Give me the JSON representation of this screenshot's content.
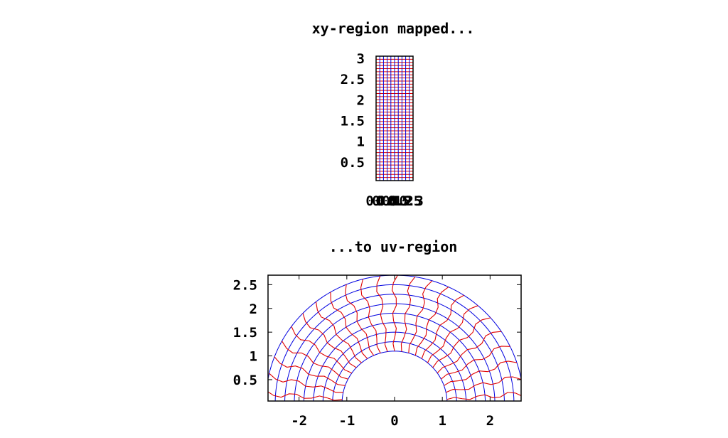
{
  "chart_data": [
    {
      "type": "line",
      "title": "xy-region mapped...",
      "xlabel": "",
      "ylabel": "",
      "xlim": [
        0,
        0.31416
      ],
      "ylim": [
        0.05,
        3.05
      ],
      "yticks": [
        "3",
        "2.5",
        "2",
        "1.5",
        "1",
        "0.5"
      ],
      "yticks_values": [
        3,
        2.5,
        2,
        1.5,
        1,
        0.5
      ],
      "xtick_labels": [
        "0",
        "0.05",
        "0.1",
        "0.15",
        "0.2",
        "0.25",
        "0.3"
      ],
      "xticks_values": [
        0,
        0.05,
        0.1,
        0.15,
        0.2,
        0.25,
        0.3
      ],
      "grid": {
        "x_lines": 10,
        "y_lines": 40
      },
      "series": [
        {
          "color": "#e00000",
          "values": []
        },
        {
          "color": "#0000e0",
          "values": []
        }
      ]
    },
    {
      "type": "line",
      "title": "...to uv-region",
      "xlabel": "",
      "ylabel": "",
      "xlim": [
        -2.65,
        2.65
      ],
      "ylim": [
        0.05,
        2.7
      ],
      "xtick_labels": [
        "-2",
        "-1",
        "0",
        "1",
        "2"
      ],
      "xticks_values": [
        -2,
        -1,
        0,
        1,
        2
      ],
      "yticks": [
        "2.5",
        "2",
        "1.5",
        "1",
        "0.5"
      ],
      "yticks_values": [
        2.5,
        2,
        1.5,
        1,
        0.5
      ],
      "mapping": "u = r·cos(θ), v = r·sin(θ) of the xy-region",
      "radii": [
        1.1,
        2.7
      ],
      "series": [
        {
          "color": "#e00000",
          "values": []
        },
        {
          "color": "#0000e0",
          "values": []
        }
      ]
    }
  ]
}
